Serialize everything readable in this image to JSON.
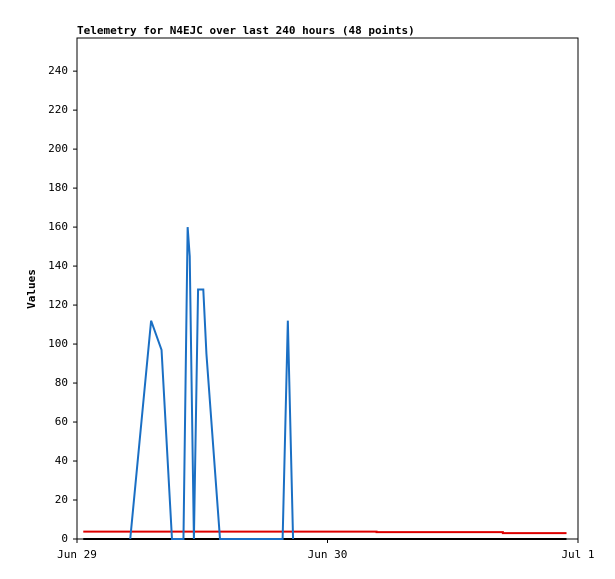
{
  "chart_data": {
    "type": "line",
    "title": "Telemetry for N4EJC over last 240 hours (48 points)",
    "y_label": "Values",
    "xlim": [
      0,
      48
    ],
    "xticks": [
      {
        "value": 0,
        "label": "Jun 29"
      },
      {
        "value": 24,
        "label": "Jun 30"
      },
      {
        "value": 48,
        "label": "Jul 1"
      }
    ],
    "ylim": [
      0,
      257
    ],
    "yticks": [
      0,
      20,
      40,
      60,
      80,
      100,
      120,
      140,
      160,
      180,
      200,
      220,
      240
    ],
    "grid": false,
    "series": [
      {
        "color": "#000000",
        "x": [
          0.6,
          46.9
        ],
        "values": [
          0,
          0
        ]
      },
      {
        "color": "#dd0000",
        "x": [
          0.6,
          28.7,
          28.7,
          40.8,
          40.8,
          46.9
        ],
        "values": [
          3.8,
          3.8,
          3.5,
          3.5,
          3,
          3
        ]
      },
      {
        "color": "#1a6fc4",
        "x": [
          5.1,
          7.1,
          8.1,
          9.1,
          10.2,
          10.6,
          10.8,
          11.2,
          11.6,
          12.1,
          12.4,
          13.7,
          19.7,
          20.2,
          20.7
        ],
        "values": [
          0,
          112,
          97,
          0,
          0,
          160,
          145,
          0,
          128,
          128,
          95,
          0,
          0,
          112,
          0
        ]
      }
    ]
  }
}
